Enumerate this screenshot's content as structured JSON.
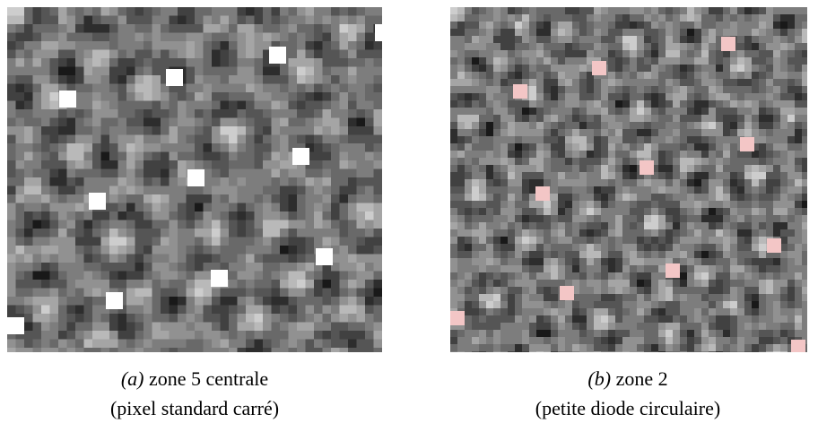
{
  "figures": [
    {
      "label": "(a)",
      "caption": "zone 5 centrale",
      "subcaption": "(pixel standard carré)"
    },
    {
      "label": "(b)",
      "caption": "zone 2",
      "subcaption": "(petite diode circulaire)"
    }
  ]
}
